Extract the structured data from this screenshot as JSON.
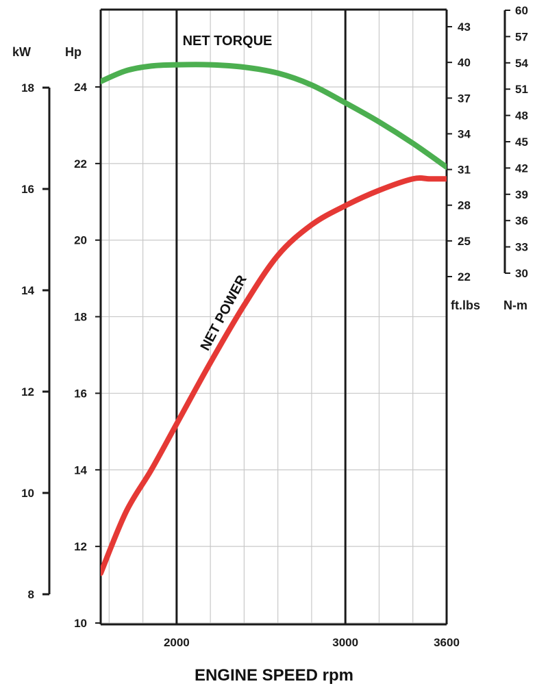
{
  "chart_data": {
    "type": "line",
    "title": "",
    "xlabel": "ENGINE SPEED rpm",
    "x_tick_labels": [
      "2000",
      "3000",
      "3600"
    ],
    "x_ticks": [
      2000,
      3000,
      3600
    ],
    "xlim": [
      1550,
      3600
    ],
    "grid": true,
    "axes": {
      "hp": {
        "unit": "Hp",
        "ticks": [
          10,
          12,
          14,
          16,
          18,
          20,
          22,
          24
        ],
        "range": [
          10,
          24
        ]
      },
      "kw": {
        "unit": "kW",
        "ticks": [
          8,
          10,
          12,
          14,
          16,
          18
        ],
        "range": [
          8,
          18
        ]
      },
      "ftlbs": {
        "unit": "ft.lbs",
        "ticks": [
          22,
          25,
          28,
          31,
          34,
          37,
          40,
          43
        ],
        "range": [
          22,
          43
        ]
      },
      "nm": {
        "unit": "N-m",
        "ticks": [
          30,
          33,
          36,
          39,
          42,
          45,
          48,
          51,
          54,
          57,
          60
        ],
        "range": [
          30,
          60
        ]
      }
    },
    "series": [
      {
        "name": "NET TORQUE",
        "color": "#4caf50",
        "axis": "ftlbs",
        "x": [
          1550,
          1700,
          1850,
          2000,
          2200,
          2400,
          2600,
          2800,
          3000,
          3200,
          3400,
          3600
        ],
        "y": [
          38.4,
          39.3,
          39.7,
          39.8,
          39.8,
          39.6,
          39.1,
          38.1,
          36.6,
          35.0,
          33.2,
          31.2
        ]
      },
      {
        "name": "NET POWER",
        "color": "#e53935",
        "axis": "hp",
        "x": [
          1550,
          1700,
          1850,
          2000,
          2200,
          2400,
          2600,
          2800,
          3000,
          3200,
          3400,
          3500,
          3600
        ],
        "y": [
          11.3,
          12.9,
          14.0,
          15.2,
          16.8,
          18.3,
          19.6,
          20.4,
          20.9,
          21.3,
          21.6,
          21.6,
          21.6
        ]
      }
    ]
  }
}
